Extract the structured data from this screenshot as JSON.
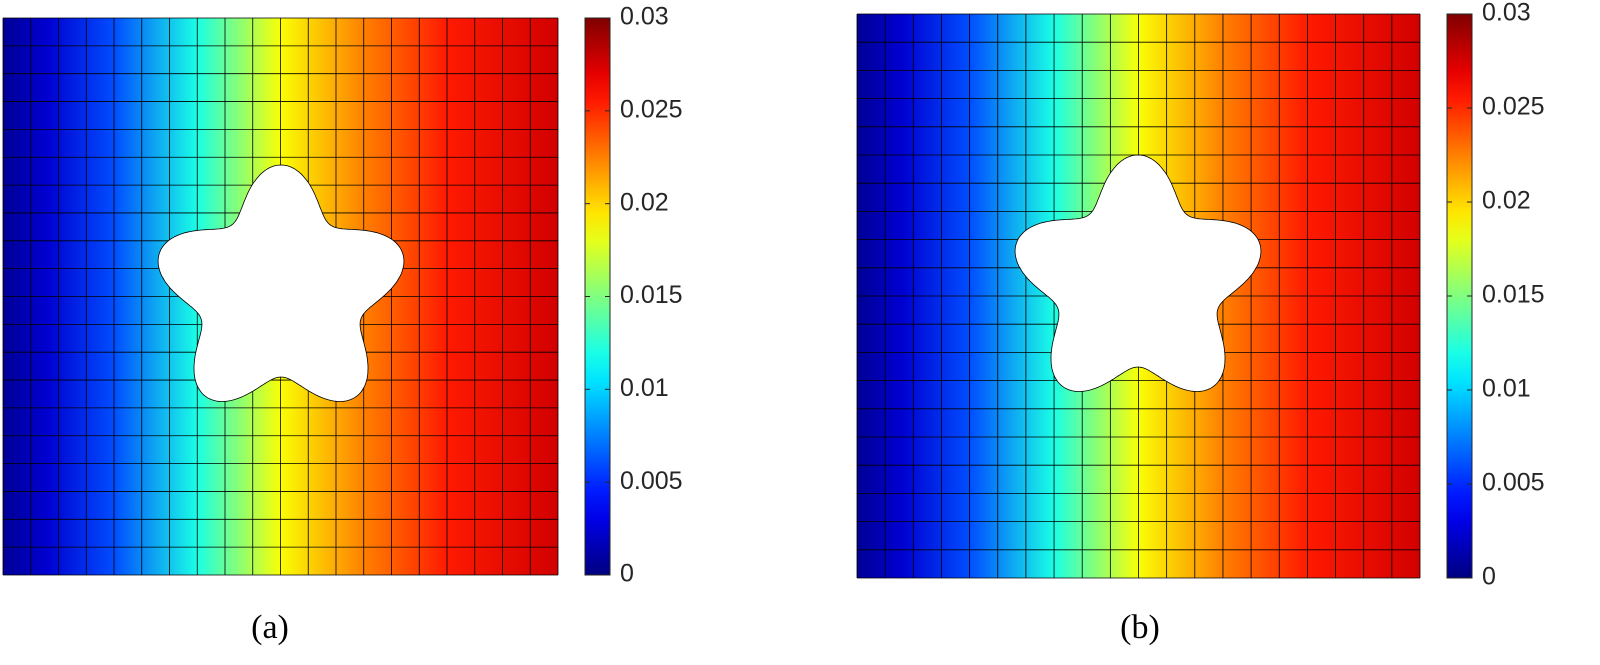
{
  "chart_data": [
    {
      "type": "heatmap",
      "caption": "(a)",
      "colormap": "jet",
      "clim": [
        0,
        0.03
      ],
      "cticks": [
        0,
        0.005,
        0.01,
        0.015,
        0.02,
        0.025,
        0.03
      ]
    },
    {
      "type": "heatmap",
      "caption": "(b)",
      "colormap": "jet",
      "clim": [
        0,
        0.03
      ],
      "cticks": [
        0,
        0.005,
        0.01,
        0.015,
        0.02,
        0.025,
        0.03
      ]
    }
  ]
}
